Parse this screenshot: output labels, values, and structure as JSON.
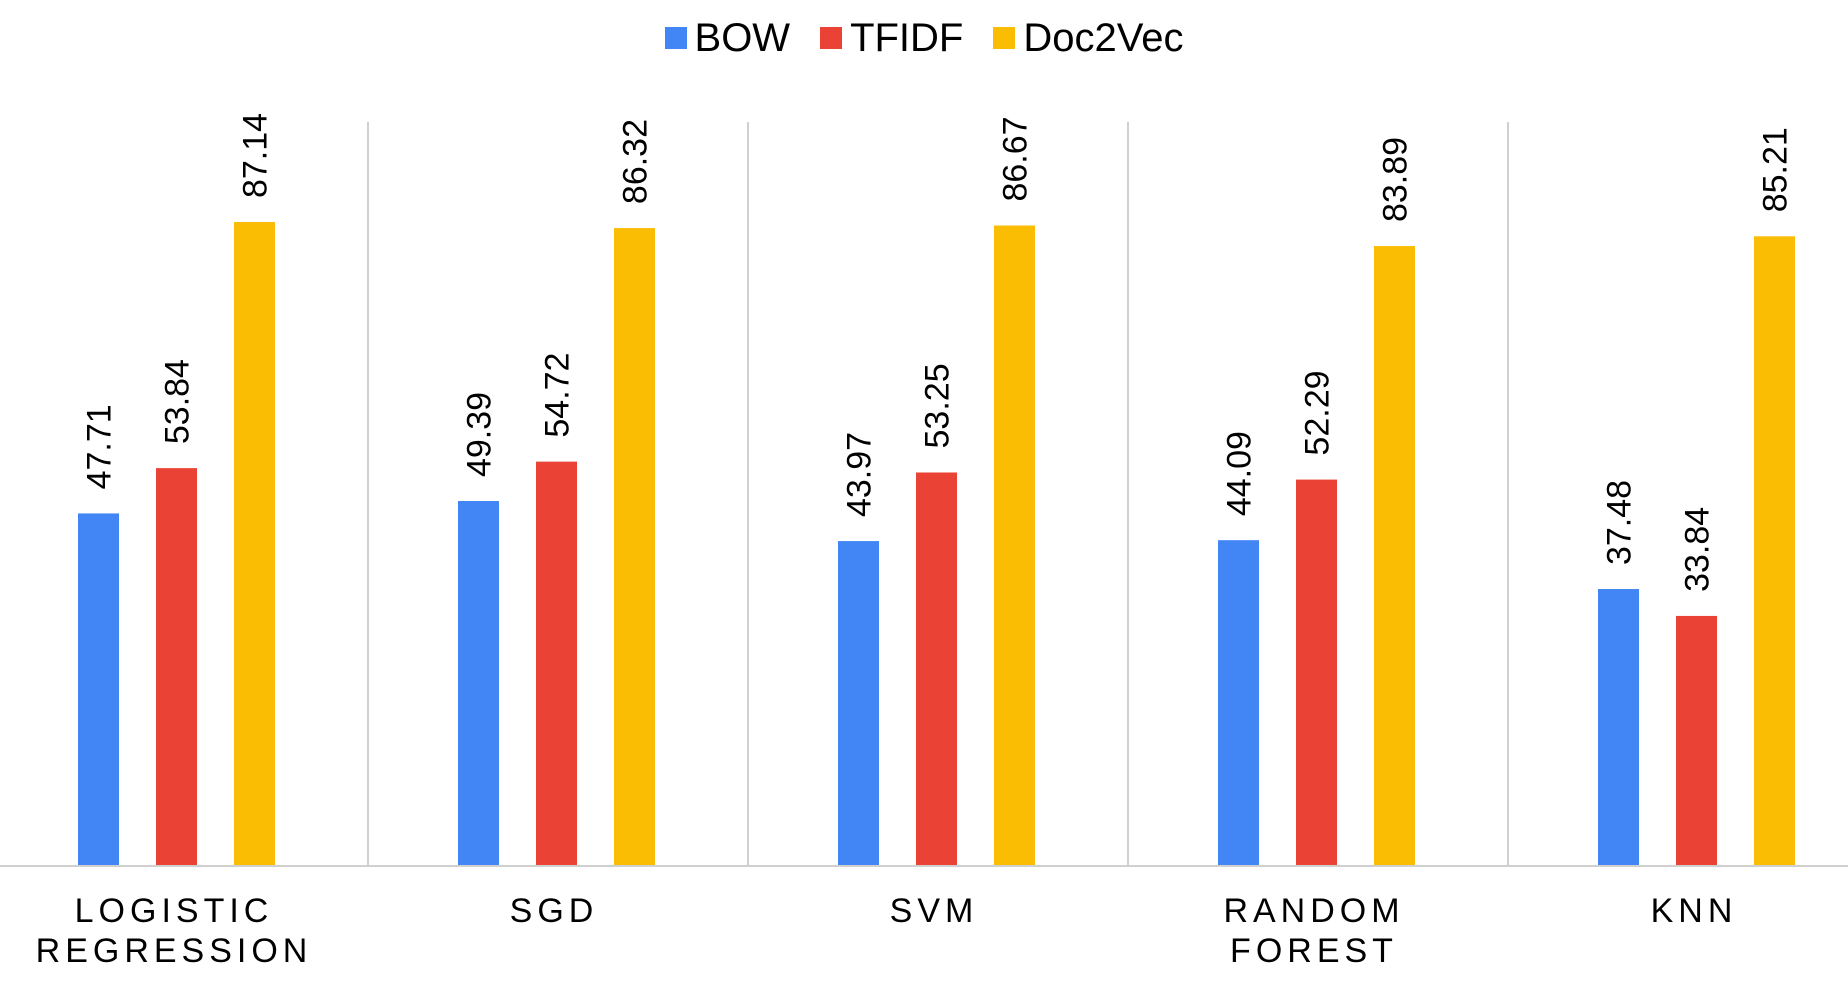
{
  "chart_data": {
    "type": "bar",
    "title": "",
    "xlabel": "",
    "ylabel": "",
    "ylim": [
      0,
      100
    ],
    "categories": [
      [
        "LOGISTIC",
        "REGRESSION"
      ],
      [
        "SGD"
      ],
      [
        "SVM"
      ],
      [
        "RANDOM",
        "FOREST"
      ],
      [
        "KNN"
      ]
    ],
    "series": [
      {
        "name": "BOW",
        "color": "#4285f4",
        "values": [
          47.71,
          49.39,
          43.97,
          44.09,
          37.48
        ]
      },
      {
        "name": "TFIDF",
        "color": "#ea4335",
        "values": [
          53.84,
          54.72,
          53.25,
          52.29,
          33.84
        ]
      },
      {
        "name": "Doc2Vec",
        "color": "#fbbc04",
        "values": [
          87.14,
          86.32,
          86.67,
          83.89,
          85.21
        ]
      }
    ],
    "value_labels": [
      [
        "47.71",
        "49.39",
        "43.97",
        "44.09",
        "37.48"
      ],
      [
        "53.84",
        "54.72",
        "53.25",
        "52.29",
        "33.84"
      ],
      [
        "87.14",
        "86.32",
        "86.67",
        "83.89",
        "85.21"
      ]
    ],
    "legend_position": "top-center",
    "grid": false,
    "category_separators": true
  }
}
